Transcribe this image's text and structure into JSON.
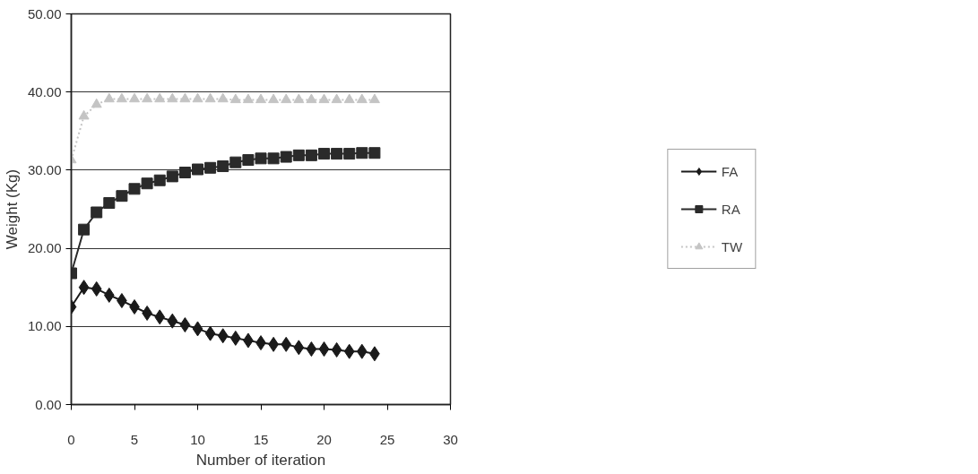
{
  "chart_data": {
    "type": "line",
    "xlabel": "Number of iteration",
    "ylabel": "Weight (Kg)",
    "x": [
      0,
      1,
      2,
      3,
      4,
      5,
      6,
      7,
      8,
      9,
      10,
      11,
      12,
      13,
      14,
      15,
      16,
      17,
      18,
      19,
      20,
      21,
      22,
      23,
      24
    ],
    "series": [
      {
        "name": "FA",
        "color": "#1a1a1a",
        "marker": "diamond",
        "line_style": "solid",
        "values": [
          12.5,
          15.0,
          14.8,
          14.0,
          13.3,
          12.5,
          11.7,
          11.2,
          10.7,
          10.2,
          9.7,
          9.1,
          8.8,
          8.5,
          8.2,
          7.9,
          7.7,
          7.7,
          7.3,
          7.1,
          7.1,
          7.0,
          6.8,
          6.8,
          6.5
        ]
      },
      {
        "name": "RA",
        "color": "#2a2a2a",
        "marker": "square",
        "line_style": "solid",
        "values": [
          16.8,
          22.4,
          24.6,
          25.8,
          26.7,
          27.6,
          28.3,
          28.7,
          29.2,
          29.7,
          30.1,
          30.3,
          30.5,
          31.0,
          31.3,
          31.5,
          31.5,
          31.7,
          31.9,
          31.9,
          32.1,
          32.1,
          32.1,
          32.2,
          32.2
        ]
      },
      {
        "name": "TW",
        "color": "#c4c4c4",
        "marker": "triangle",
        "line_style": "dotted",
        "values": [
          31.3,
          36.9,
          38.4,
          39.1,
          39.1,
          39.1,
          39.1,
          39.1,
          39.1,
          39.1,
          39.1,
          39.1,
          39.1,
          39.0,
          39.0,
          39.0,
          39.0,
          39.0,
          39.0,
          39.0,
          39.0,
          39.0,
          39.0,
          39.0,
          39.0
        ]
      }
    ],
    "xlim": [
      0,
      30
    ],
    "xticks": [
      0,
      5,
      10,
      15,
      20,
      25,
      30
    ],
    "ylim": [
      0,
      50
    ],
    "yticks": [
      {
        "value": 0,
        "label": "0.00"
      },
      {
        "value": 10,
        "label": "10.00"
      },
      {
        "value": 20,
        "label": "20.00"
      },
      {
        "value": 30,
        "label": "30.00"
      },
      {
        "value": 40,
        "label": "40.00"
      },
      {
        "value": 50,
        "label": "50.00"
      }
    ],
    "grid": "y",
    "legend": "right"
  }
}
